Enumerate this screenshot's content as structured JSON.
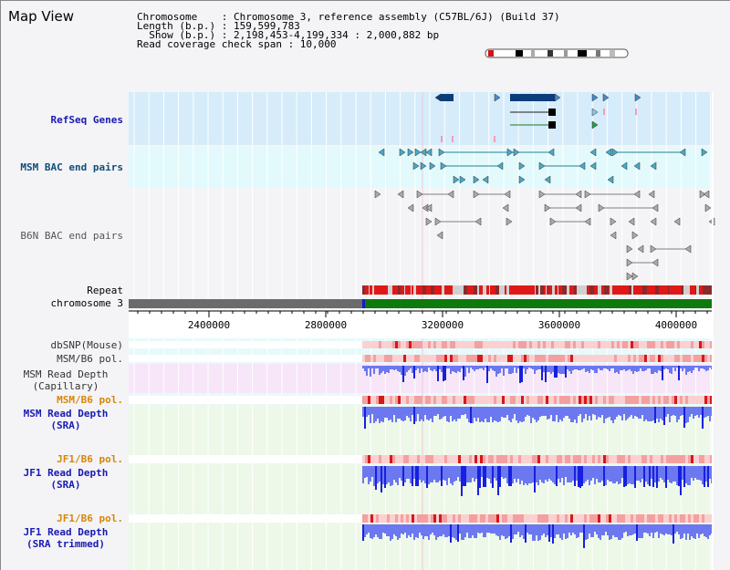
{
  "header": {
    "title": "Map View",
    "info_lines": [
      "Chromosome    : Chromosome 3, reference assembly (C57BL/6J) (Build 37)",
      "Length (b.p.) : 159,599,783",
      "  Show (b.p.) : 2,198,453-4,199,334 : 2,000,882 bp",
      "Read coverage check span : 10,000"
    ]
  },
  "tracks": {
    "refseq": "RefSeq Genes",
    "msm_bac": "MSM BAC end pairs",
    "b6n_bac": "B6N BAC end pairs",
    "repeat": "Repeat",
    "chromosome": "chromosome 3",
    "dbsnp": "dbSNP(Mouse)",
    "msm_b6_pol_a": "MSM/B6 pol.",
    "msm_depth_cap_1": "MSM Read Depth",
    "msm_depth_cap_2": "(Capillary)",
    "msm_b6_pol_b": "MSM/B6 pol.",
    "msm_depth_sra_1": "MSM Read Depth",
    "msm_depth_sra_2": "(SRA)",
    "jf1_b6_pol_a": "JF1/B6 pol.",
    "jf1_depth_sra_1": "JF1 Read Depth",
    "jf1_depth_sra_2": "(SRA)",
    "jf1_b6_pol_b": "JF1/B6 pol.",
    "jf1_depth_trim_1": "JF1 Read Depth",
    "jf1_depth_trim_2": "(SRA trimmed)"
  },
  "ruler": {
    "ticks": [
      "2400000",
      "2800000",
      "3200000",
      "3600000",
      "4000000"
    ]
  },
  "colors": {
    "refseq_bg": "#d6ecfa",
    "msm_bac_bg": "#e2fafb",
    "b6n_bac_bg": "#f4f4f6",
    "gene": "#0d3c7a",
    "msm_pair": "#2a7f9a",
    "b6n_pair": "#808080",
    "repeat_red": "#e01818",
    "chrom_gray": "#6b6b6b",
    "chrom_green": "#0e7a0e",
    "depth_blue": "#2838e6",
    "pol_red": "#e81818",
    "label_blue": "#1a1ab4",
    "label_orange": "#d8860a"
  }
}
